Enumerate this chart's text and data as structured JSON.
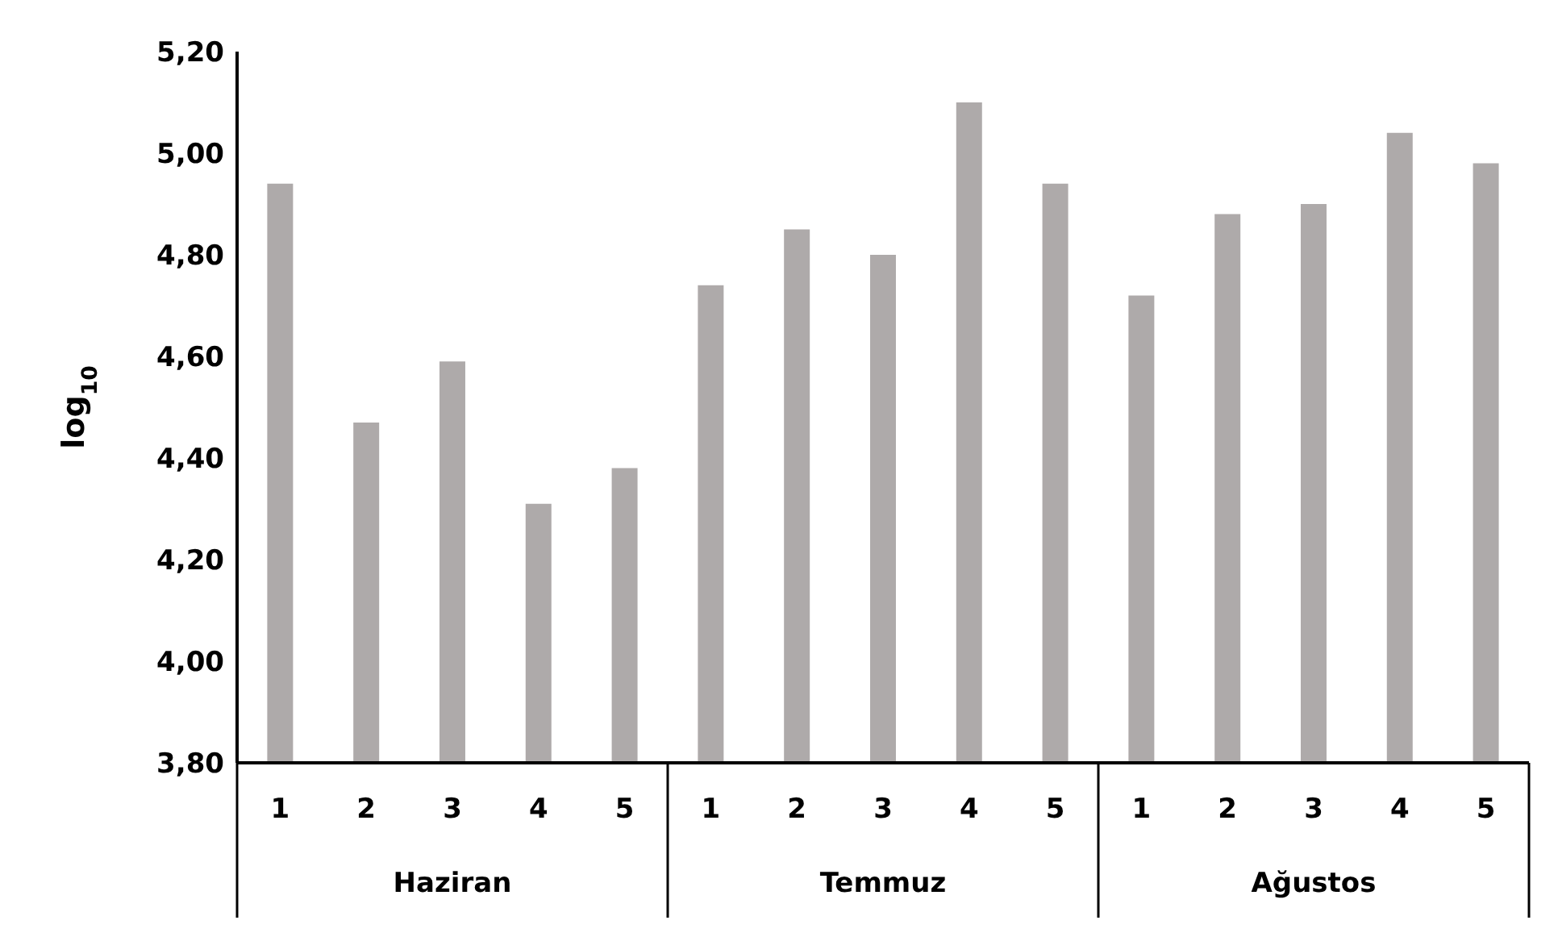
{
  "chart_data": {
    "type": "bar",
    "ylabel": "log$_{10}$",
    "categories": [
      "1",
      "2",
      "3",
      "4",
      "5",
      "1",
      "2",
      "3",
      "4",
      "5",
      "1",
      "2",
      "3",
      "4",
      "5"
    ],
    "values": [
      4.94,
      4.47,
      4.59,
      4.31,
      4.38,
      4.74,
      4.85,
      4.8,
      5.1,
      4.94,
      4.72,
      4.88,
      4.9,
      5.04,
      4.98
    ],
    "color": "#aeaaaa",
    "ylim": [
      3.8,
      5.2
    ],
    "yticks": [
      {
        "value": 3.8,
        "label": "3,80"
      },
      {
        "value": 4.0,
        "label": "4,00"
      },
      {
        "value": 4.2,
        "label": "4,20"
      },
      {
        "value": 4.4,
        "label": "4,40"
      },
      {
        "value": 4.6,
        "label": "4,60"
      },
      {
        "value": 4.8,
        "label": "4,80"
      },
      {
        "value": 5.0,
        "label": "5,00"
      },
      {
        "value": 5.2,
        "label": "5,20"
      }
    ],
    "grid": false,
    "legend": false,
    "annotations": [
      "Haziran",
      "Temmuz",
      "Ağustos"
    ]
  }
}
